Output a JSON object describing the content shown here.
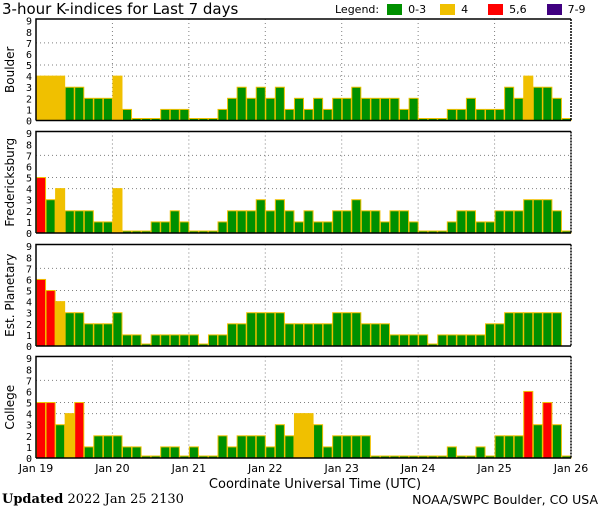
{
  "chart_data": {
    "type": "bar",
    "title": "3-hour K-indices for Last 7 days",
    "legend_label": "Legend:",
    "legend": [
      {
        "label": "0-3",
        "color": "#009000"
      },
      {
        "label": "4",
        "color": "#f0c000"
      },
      {
        "label": "5,6",
        "color": "#ff0000"
      },
      {
        "label": "7-9",
        "color": "#400080"
      }
    ],
    "xlabel": "Coordinate Universal Time (UTC)",
    "x_ticks": [
      "Jan 19",
      "Jan 20",
      "Jan 21",
      "Jan 22",
      "Jan 23",
      "Jan 24",
      "Jan 25",
      "Jan 26"
    ],
    "y_ticks": [
      "0",
      "1",
      "2",
      "3",
      "4",
      "5",
      "6",
      "7",
      "8",
      "9"
    ],
    "ylim": [
      0,
      9
    ],
    "bars_per_day": 8,
    "series": [
      {
        "name": "Boulder",
        "values": [
          4,
          4,
          4,
          3,
          3,
          2,
          2,
          2,
          4,
          1,
          0,
          0,
          0,
          1,
          1,
          1,
          0,
          0,
          0,
          1,
          2,
          3,
          2,
          3,
          2,
          3,
          1,
          2,
          1,
          2,
          1,
          2,
          2,
          3,
          2,
          2,
          2,
          2,
          1,
          2,
          0,
          0,
          0,
          1,
          1,
          2,
          1,
          1,
          1,
          3,
          2,
          4,
          3,
          3,
          2,
          0
        ]
      },
      {
        "name": "Fredericksburg",
        "values": [
          5,
          3,
          4,
          2,
          2,
          2,
          1,
          1,
          4,
          0,
          0,
          0,
          1,
          1,
          2,
          1,
          0,
          0,
          0,
          1,
          2,
          2,
          2,
          3,
          2,
          3,
          2,
          1,
          2,
          1,
          1,
          2,
          2,
          3,
          2,
          2,
          1,
          2,
          2,
          1,
          0,
          0,
          0,
          1,
          2,
          2,
          1,
          1,
          2,
          2,
          2,
          3,
          3,
          3,
          2,
          0
        ]
      },
      {
        "name": "Est. Planetary",
        "values": [
          6,
          5,
          4,
          3,
          3,
          2,
          2,
          2,
          3,
          1,
          1,
          0,
          1,
          1,
          1,
          1,
          1,
          0,
          1,
          1,
          2,
          2,
          3,
          3,
          3,
          3,
          2,
          2,
          2,
          2,
          2,
          3,
          3,
          3,
          2,
          2,
          2,
          1,
          1,
          1,
          1,
          0,
          1,
          1,
          1,
          1,
          1,
          2,
          2,
          3,
          3,
          3,
          3,
          3,
          3,
          null
        ]
      },
      {
        "name": "College",
        "values": [
          5,
          5,
          3,
          4,
          5,
          1,
          2,
          2,
          2,
          1,
          1,
          0,
          0,
          1,
          1,
          0,
          1,
          0,
          0,
          2,
          1,
          2,
          2,
          2,
          1,
          3,
          2,
          4,
          4,
          3,
          1,
          2,
          2,
          2,
          2,
          0,
          0,
          0,
          0,
          0,
          0,
          0,
          0,
          1,
          0,
          0,
          1,
          0,
          2,
          2,
          2,
          6,
          3,
          5,
          3,
          0
        ]
      }
    ]
  },
  "footer": {
    "updated_label": "Updated",
    "updated_value": "2022 Jan 25 2130",
    "credit": "NOAA/SWPC Boulder, CO USA"
  },
  "colors": {
    "green": "#009000",
    "yellow": "#f0c000",
    "red": "#ff0000",
    "purple": "#400080",
    "grid": "#808080"
  }
}
